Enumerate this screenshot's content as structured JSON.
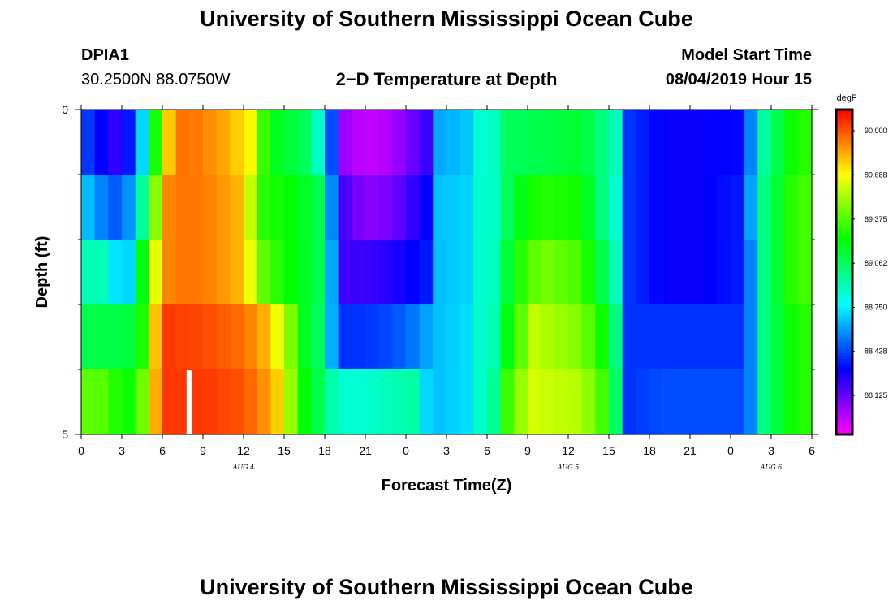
{
  "page": {
    "title_top": "University of Southern Mississippi Ocean Cube",
    "title_bottom": "University of Southern Mississippi Ocean Cube",
    "station_id": "DPIA1",
    "station_coords": "30.2500N 88.0750W",
    "plot_title": "2−D Temperature at Depth",
    "model_start_label": "Model Start Time",
    "model_start_value": "08/04/2019 Hour 15"
  },
  "chart_data": {
    "type": "heatmap",
    "title": "2−D Temperature at Depth",
    "xlabel": "Forecast Time(Z)",
    "ylabel": "Depth (ft)",
    "x_hours": [
      0,
      54
    ],
    "x_tick_hours": [
      0,
      3,
      6,
      9,
      12,
      15,
      18,
      21,
      24,
      27,
      30,
      33,
      36,
      39,
      42,
      45,
      48,
      51,
      54
    ],
    "x_tick_labels": [
      "0",
      "3",
      "6",
      "9",
      "12",
      "15",
      "18",
      "21",
      "0",
      "3",
      "6",
      "9",
      "12",
      "15",
      "18",
      "21",
      "0",
      "3",
      "6"
    ],
    "date_labels": [
      {
        "hour": 12,
        "text": "AUG 4"
      },
      {
        "hour": 36,
        "text": "AUG 5"
      },
      {
        "hour": 51,
        "text": "AUG 6"
      }
    ],
    "y_range": [
      0,
      5
    ],
    "y_tick_labels": [
      {
        "value": 0,
        "text": "0"
      },
      {
        "value": 5,
        "text": "5"
      }
    ],
    "y_minor_ticks": [
      1,
      2,
      3,
      4
    ],
    "depth_levels": [
      0,
      1,
      2,
      3,
      4
    ],
    "colorbar": {
      "unit": "degF",
      "min": 87.85,
      "max": 90.15,
      "labels": [
        "90.000",
        "89.688",
        "89.375",
        "89.062",
        "88.750",
        "88.438",
        "88.125"
      ],
      "label_values": [
        90.0,
        89.688,
        89.375,
        89.062,
        88.75,
        88.438,
        88.125
      ]
    },
    "missing_marker": {
      "hour": 8,
      "depth": 4,
      "color": "#ffffff"
    },
    "temperature_keyframes_degF": [
      [
        [
          0,
          88.4
        ],
        [
          1,
          88.42
        ],
        [
          2,
          88.2
        ],
        [
          3,
          88.25
        ],
        [
          4,
          88.45
        ],
        [
          4.6,
          88.75
        ],
        [
          5.4,
          89.2
        ],
        [
          6,
          89.62
        ],
        [
          7,
          89.95
        ],
        [
          9,
          89.92
        ],
        [
          11,
          89.82
        ],
        [
          12.5,
          89.7
        ],
        [
          13.2,
          89.4
        ],
        [
          14,
          89.2
        ],
        [
          16,
          89.1
        ],
        [
          17,
          89.05
        ],
        [
          18,
          88.7
        ],
        [
          18.6,
          88.4
        ],
        [
          19,
          88.05
        ],
        [
          21,
          87.95
        ],
        [
          23,
          88.0
        ],
        [
          25.5,
          88.2
        ],
        [
          26,
          88.6
        ],
        [
          29,
          88.68
        ],
        [
          29.8,
          88.95
        ],
        [
          30.2,
          88.78
        ],
        [
          31,
          89.05
        ],
        [
          34,
          89.1
        ],
        [
          37,
          89.15
        ],
        [
          38.5,
          89.0
        ],
        [
          39.5,
          88.9
        ],
        [
          40,
          88.65
        ],
        [
          40.5,
          88.4
        ],
        [
          43,
          88.3
        ],
        [
          46,
          88.3
        ],
        [
          48.5,
          88.32
        ],
        [
          49.5,
          88.55
        ],
        [
          50,
          88.9
        ],
        [
          51,
          89.0
        ],
        [
          52,
          89.2
        ],
        [
          53,
          89.3
        ],
        [
          54,
          89.3
        ]
      ],
      [
        [
          0,
          88.7
        ],
        [
          2,
          88.5
        ],
        [
          3,
          88.45
        ],
        [
          4,
          88.7
        ],
        [
          4.6,
          89.0
        ],
        [
          5.3,
          89.3
        ],
        [
          6,
          89.9
        ],
        [
          8,
          89.95
        ],
        [
          10,
          89.9
        ],
        [
          12,
          89.8
        ],
        [
          12.7,
          89.5
        ],
        [
          13.5,
          89.3
        ],
        [
          16,
          89.2
        ],
        [
          17.5,
          89.1
        ],
        [
          18.3,
          88.6
        ],
        [
          18.8,
          88.5
        ],
        [
          19.2,
          88.2
        ],
        [
          21,
          88.05
        ],
        [
          23,
          88.1
        ],
        [
          25.5,
          88.3
        ],
        [
          26,
          88.65
        ],
        [
          29,
          88.7
        ],
        [
          29.8,
          88.95
        ],
        [
          30.2,
          88.8
        ],
        [
          31,
          89.0
        ],
        [
          32.5,
          89.2
        ],
        [
          34,
          89.3
        ],
        [
          37,
          89.25
        ],
        [
          38.5,
          89.0
        ],
        [
          39.5,
          88.85
        ],
        [
          40,
          88.6
        ],
        [
          40.5,
          88.4
        ],
        [
          43,
          88.3
        ],
        [
          46,
          88.3
        ],
        [
          48.5,
          88.35
        ],
        [
          49.5,
          88.6
        ],
        [
          50,
          88.95
        ],
        [
          51,
          89.05
        ],
        [
          52,
          89.25
        ],
        [
          53,
          89.35
        ],
        [
          54,
          89.35
        ]
      ],
      [
        [
          0,
          88.9
        ],
        [
          2,
          88.9
        ],
        [
          3,
          88.55
        ],
        [
          3.5,
          88.7
        ],
        [
          4,
          89.0
        ],
        [
          4.6,
          89.25
        ],
        [
          5.3,
          89.55
        ],
        [
          6,
          89.9
        ],
        [
          8,
          89.95
        ],
        [
          10,
          89.9
        ],
        [
          12,
          89.8
        ],
        [
          12.7,
          89.6
        ],
        [
          13.5,
          89.4
        ],
        [
          14.5,
          89.3
        ],
        [
          16,
          89.2
        ],
        [
          17.5,
          89.1
        ],
        [
          18.3,
          88.7
        ],
        [
          19,
          88.4
        ],
        [
          19.2,
          88.2
        ],
        [
          21,
          88.2
        ],
        [
          23,
          88.25
        ],
        [
          25.5,
          88.35
        ],
        [
          26,
          88.65
        ],
        [
          29,
          88.7
        ],
        [
          29.8,
          88.95
        ],
        [
          30.2,
          88.8
        ],
        [
          31,
          89.05
        ],
        [
          32.5,
          89.3
        ],
        [
          34,
          89.45
        ],
        [
          37,
          89.35
        ],
        [
          38.5,
          89.1
        ],
        [
          39.5,
          88.9
        ],
        [
          40,
          88.65
        ],
        [
          40.5,
          88.4
        ],
        [
          43,
          88.3
        ],
        [
          46,
          88.3
        ],
        [
          48.5,
          88.35
        ],
        [
          49.5,
          88.55
        ],
        [
          50,
          88.95
        ],
        [
          51,
          89.05
        ],
        [
          52,
          89.25
        ],
        [
          53,
          89.35
        ],
        [
          54,
          89.35
        ]
      ],
      [
        [
          0,
          89.1
        ],
        [
          3,
          89.1
        ],
        [
          4,
          89.15
        ],
        [
          4.6,
          89.3
        ],
        [
          5.3,
          89.7
        ],
        [
          6,
          90.05
        ],
        [
          9,
          90.02
        ],
        [
          12,
          89.95
        ],
        [
          14,
          89.8
        ],
        [
          14.7,
          89.6
        ],
        [
          15.5,
          89.45
        ],
        [
          16,
          89.2
        ],
        [
          17,
          89.15
        ],
        [
          18,
          89.0
        ],
        [
          18.6,
          88.55
        ],
        [
          19.2,
          88.4
        ],
        [
          21,
          88.4
        ],
        [
          23,
          88.45
        ],
        [
          25,
          88.55
        ],
        [
          25.5,
          88.6
        ],
        [
          26,
          88.65
        ],
        [
          29,
          88.72
        ],
        [
          29.8,
          88.95
        ],
        [
          30.2,
          88.8
        ],
        [
          31,
          89.1
        ],
        [
          32.5,
          89.4
        ],
        [
          33,
          89.6
        ],
        [
          34,
          89.55
        ],
        [
          37,
          89.45
        ],
        [
          38.5,
          89.25
        ],
        [
          39.5,
          89.0
        ],
        [
          40,
          88.7
        ],
        [
          40.5,
          88.4
        ],
        [
          43,
          88.4
        ],
        [
          46,
          88.4
        ],
        [
          48.5,
          88.4
        ],
        [
          49.5,
          88.55
        ],
        [
          50,
          88.95
        ],
        [
          51,
          89.05
        ],
        [
          52,
          89.2
        ],
        [
          53,
          89.3
        ],
        [
          54,
          89.3
        ]
      ],
      [
        [
          0,
          89.4
        ],
        [
          2,
          89.38
        ],
        [
          3,
          89.2
        ],
        [
          4,
          89.3
        ],
        [
          4.6,
          89.45
        ],
        [
          5.3,
          89.75
        ],
        [
          6,
          90.05
        ],
        [
          9,
          90.05
        ],
        [
          12,
          90.0
        ],
        [
          14,
          89.85
        ],
        [
          15,
          89.7
        ],
        [
          15.5,
          89.5
        ],
        [
          16,
          89.3
        ],
        [
          17,
          89.15
        ],
        [
          18,
          89.05
        ],
        [
          18.6,
          88.9
        ],
        [
          19.5,
          88.85
        ],
        [
          21,
          88.85
        ],
        [
          23,
          88.9
        ],
        [
          25,
          88.95
        ],
        [
          25.5,
          88.7
        ],
        [
          26,
          88.65
        ],
        [
          29,
          88.72
        ],
        [
          29.8,
          88.95
        ],
        [
          30.2,
          88.8
        ],
        [
          31,
          89.25
        ],
        [
          32.5,
          89.5
        ],
        [
          33,
          89.62
        ],
        [
          34,
          89.6
        ],
        [
          37,
          89.55
        ],
        [
          38.5,
          89.35
        ],
        [
          39.5,
          89.05
        ],
        [
          40,
          88.75
        ],
        [
          40.5,
          88.4
        ],
        [
          43,
          88.45
        ],
        [
          46,
          88.45
        ],
        [
          48.5,
          88.45
        ],
        [
          49.5,
          88.55
        ],
        [
          50,
          88.95
        ],
        [
          51,
          89.05
        ],
        [
          52,
          89.2
        ],
        [
          53,
          89.3
        ],
        [
          54,
          89.3
        ]
      ]
    ]
  }
}
